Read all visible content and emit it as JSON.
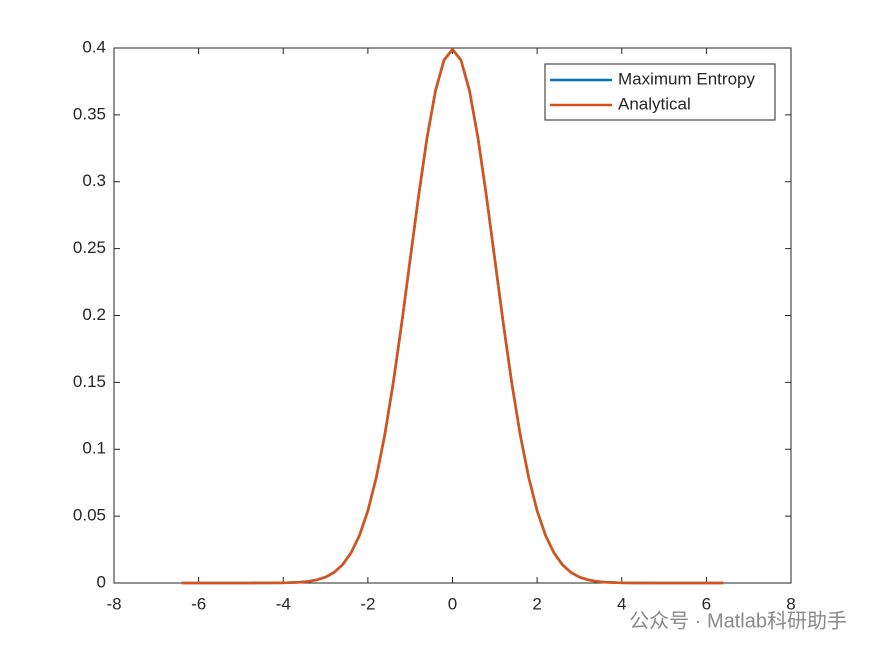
{
  "chart_data": {
    "type": "line",
    "x": [
      -6.4,
      -5.6,
      -4.8,
      -4.0,
      -3.6,
      -3.4,
      -3.2,
      -3.0,
      -2.8,
      -2.6,
      -2.4,
      -2.2,
      -2.0,
      -1.8,
      -1.6,
      -1.4,
      -1.2,
      -1.0,
      -0.8,
      -0.6,
      -0.4,
      -0.2,
      0,
      0.2,
      0.4,
      0.6,
      0.8,
      1.0,
      1.2,
      1.4,
      1.6,
      1.8,
      2.0,
      2.2,
      2.4,
      2.6,
      2.8,
      3.0,
      3.2,
      3.4,
      3.6,
      4.0,
      4.8,
      5.6,
      6.4
    ],
    "series": [
      {
        "name": "Maximum Entropy",
        "color": "#0072bd",
        "values": [
          0,
          0,
          0,
          0.0001,
          0.0006,
          0.0012,
          0.0024,
          0.0044,
          0.0079,
          0.0136,
          0.0224,
          0.0355,
          0.054,
          0.079,
          0.1109,
          0.1497,
          0.1942,
          0.242,
          0.2897,
          0.3332,
          0.3683,
          0.391,
          0.3989,
          0.391,
          0.3683,
          0.3332,
          0.2897,
          0.242,
          0.1942,
          0.1497,
          0.1109,
          0.079,
          0.054,
          0.0355,
          0.0224,
          0.0136,
          0.0079,
          0.0044,
          0.0024,
          0.0012,
          0.0006,
          0.0001,
          0,
          0,
          0
        ]
      },
      {
        "name": "Analytical",
        "color": "#d95319",
        "values": [
          0,
          0,
          0,
          0.0001,
          0.0006,
          0.0012,
          0.0024,
          0.0044,
          0.0079,
          0.0136,
          0.0224,
          0.0355,
          0.054,
          0.079,
          0.1109,
          0.1497,
          0.1942,
          0.242,
          0.2897,
          0.3332,
          0.3683,
          0.391,
          0.3989,
          0.391,
          0.3683,
          0.3332,
          0.2897,
          0.242,
          0.1942,
          0.1497,
          0.1109,
          0.079,
          0.054,
          0.0355,
          0.0224,
          0.0136,
          0.0079,
          0.0044,
          0.0024,
          0.0012,
          0.0006,
          0.0001,
          0,
          0,
          0
        ]
      }
    ],
    "xlim": [
      -8,
      8
    ],
    "xticks": [
      -8,
      -6,
      -4,
      -2,
      0,
      2,
      4,
      6,
      8
    ],
    "ylim": [
      0,
      0.4
    ],
    "yticks": [
      0,
      0.05,
      0.1,
      0.15,
      0.2,
      0.25,
      0.3,
      0.35,
      0.4
    ],
    "grid": false,
    "legend": "northeast",
    "watermark": "公众号 · Matlab科研助手"
  }
}
